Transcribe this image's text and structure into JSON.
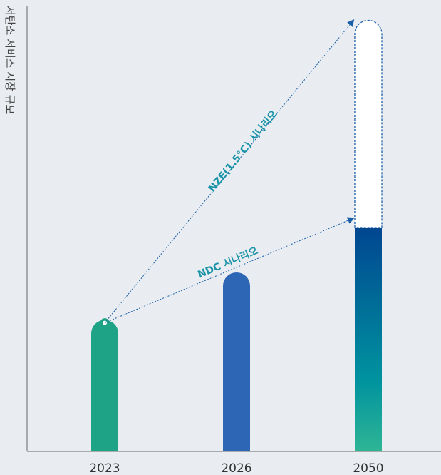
{
  "chart_data": {
    "type": "bar",
    "title": "",
    "xlabel": "",
    "ylabel": "저탄소 서비스 시장 규모",
    "categories": [
      "2023",
      "2026",
      "2050"
    ],
    "series": [
      {
        "name": "",
        "values": [
          180,
          245,
          325
        ]
      }
    ],
    "nze_projection_2050": 590,
    "ylim": [
      0,
      610
    ],
    "grid": false,
    "annotations": [
      {
        "text": "NDC 시나리오",
        "from": "2023",
        "to": "2050",
        "target_value": 325,
        "color": "#1a93a8"
      },
      {
        "text": "NZE(1.5°C) 시나리오",
        "from": "2023",
        "to": "2050",
        "target_value": 590,
        "color": "#1a93a8"
      }
    ],
    "colors": {
      "bar_2023": "#1fa386",
      "bar_2026": "#2d66b4",
      "bar_2050_top": "#003f8f",
      "bar_2050_bottom": "#2fb595",
      "arrow": "#1a5fa8",
      "axis": "#666666",
      "background": "#e9edf1"
    }
  }
}
